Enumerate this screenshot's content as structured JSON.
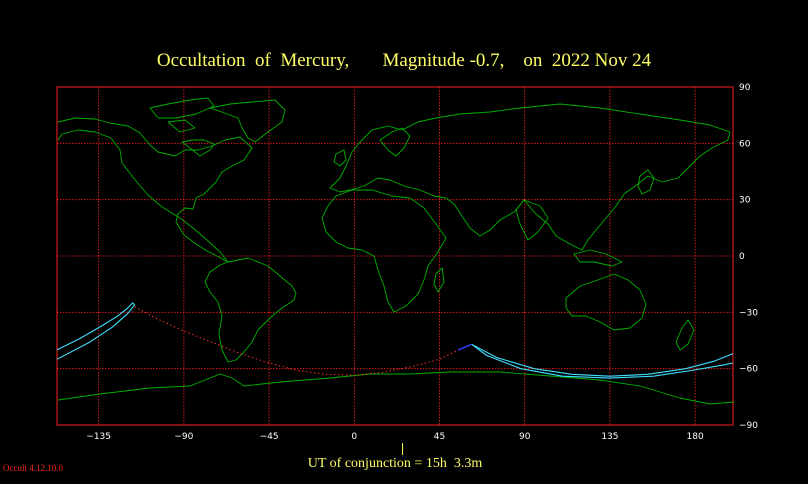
{
  "title": "Occultation  of  Mercury,       Magnitude -0.7,    on  2022 Nov 24",
  "footer": "UT of conjunction = 15h  3.3m",
  "version": "Occult 4.12.10.0",
  "colors": {
    "background": "#000000",
    "grid": "#ff2020",
    "coast": "#00b000",
    "path": "#40e0ff",
    "track": "#ff3030",
    "text": "#ffff66"
  },
  "map": {
    "projection": "equirectangular",
    "lon_range": [
      -157,
      200
    ],
    "lat_range": [
      -90,
      90
    ],
    "grid_lons": [
      -135,
      -90,
      -45,
      0,
      45,
      90,
      135,
      180
    ],
    "grid_lats": [
      60,
      30,
      0,
      -30,
      -60
    ],
    "x_tick_labels": [
      "−135",
      "−90",
      "−45",
      "0",
      "45",
      "90",
      "135",
      "180"
    ],
    "y_tick_labels": [
      "90",
      "60",
      "30",
      "0",
      "−30",
      "−60",
      "−90"
    ]
  }
}
